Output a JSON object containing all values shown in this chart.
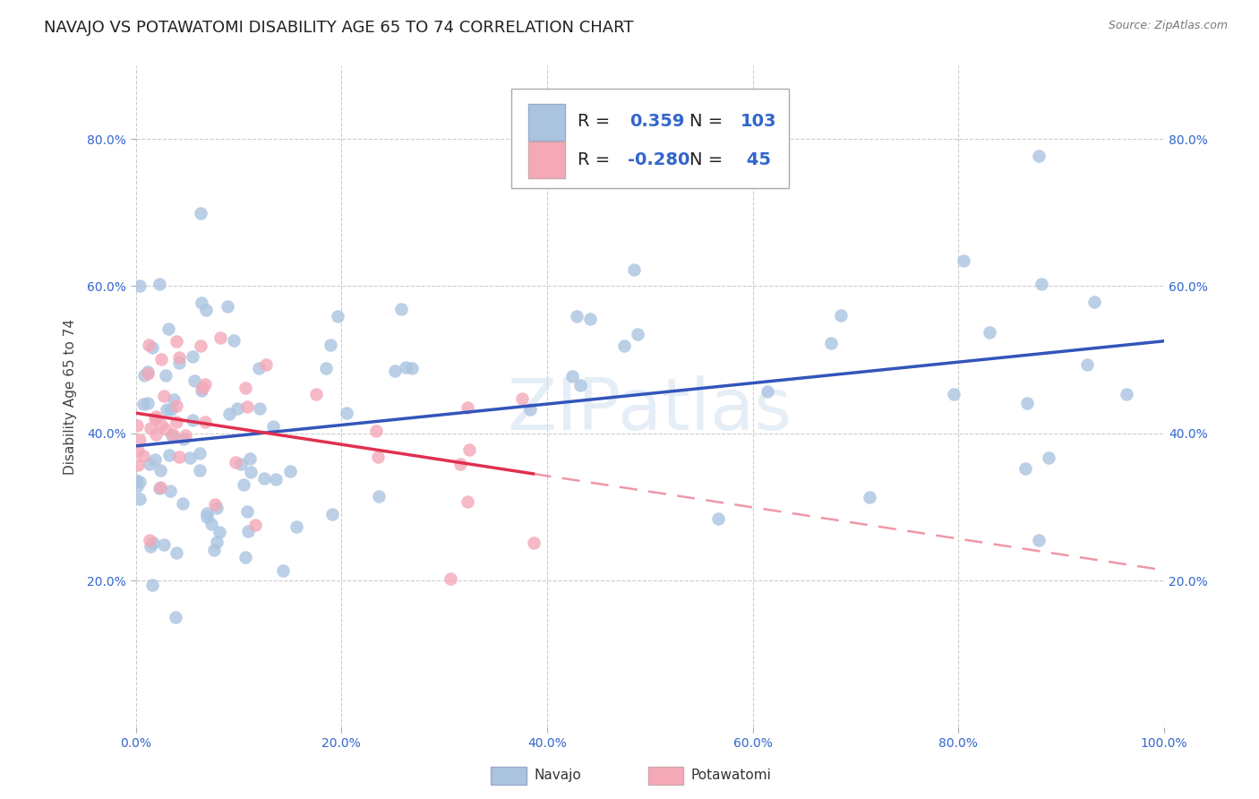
{
  "title": "NAVAJO VS POTAWATOMI DISABILITY AGE 65 TO 74 CORRELATION CHART",
  "source": "Source: ZipAtlas.com",
  "ylabel": "Disability Age 65 to 74",
  "navajo_R": 0.359,
  "navajo_N": 103,
  "potawatomi_R": -0.28,
  "potawatomi_N": 45,
  "xmin": 0.0,
  "xmax": 1.0,
  "ymin": 0.0,
  "ymax": 0.9,
  "xticks": [
    0.0,
    0.2,
    0.4,
    0.6,
    0.8,
    1.0
  ],
  "yticks": [
    0.2,
    0.4,
    0.6,
    0.8
  ],
  "xtick_labels": [
    "0.0%",
    "20.0%",
    "40.0%",
    "60.0%",
    "80.0%",
    "100.0%"
  ],
  "ytick_labels": [
    "20.0%",
    "40.0%",
    "60.0%",
    "80.0%"
  ],
  "navajo_color": "#aac4e0",
  "potawatomi_color": "#f4a8b8",
  "navajo_line_color": "#3355bb",
  "potawatomi_line_color": "#e03050",
  "watermark": "ZIPatlas",
  "background_color": "#ffffff",
  "grid_color": "#cccccc",
  "tick_color": "#3366cc",
  "title_fontsize": 13,
  "axis_label_fontsize": 11,
  "tick_fontsize": 10,
  "legend_fontsize": 14
}
